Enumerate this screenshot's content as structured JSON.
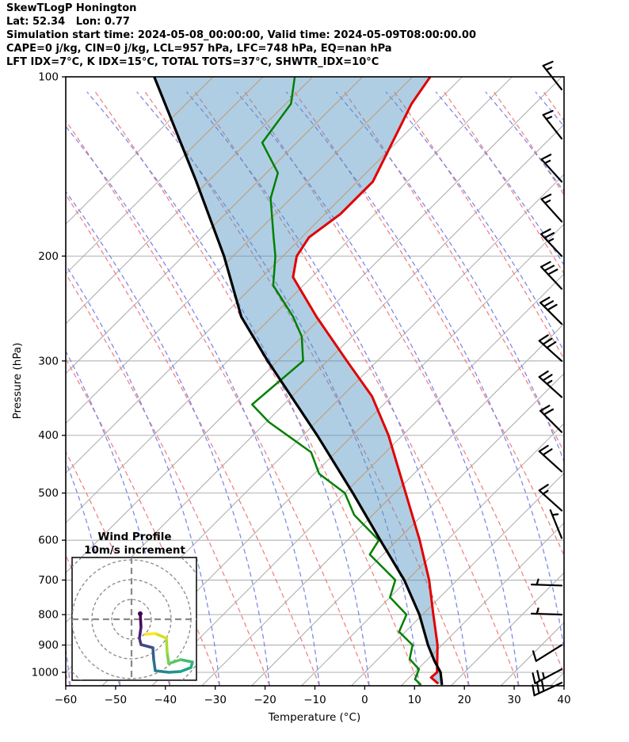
{
  "header": {
    "lines": [
      "SkewTLogP Honington",
      "Lat: 52.34   Lon: 0.77",
      "Simulation start time: 2024-05-08_00:00:00, Valid time: 2024-05-09T08:00:00.00",
      "CAPE=0 j/kg, CIN=0 j/kg, LCL=957 hPa, LFC=748 hPa, EQ=nan hPa",
      "LFT IDX=7°C, K IDX=15°C, TOTAL TOTS=37°C, SHWTR_IDX=10°C"
    ]
  },
  "axes": {
    "xlabel": "Temperature (°C)",
    "ylabel": "Pressure (hPa)",
    "x_ticks": [
      -60,
      -50,
      -40,
      -30,
      -20,
      -10,
      0,
      10,
      20,
      30,
      40
    ],
    "y_ticks": [
      100,
      200,
      300,
      400,
      500,
      600,
      700,
      800,
      900,
      1000
    ],
    "x_range": [
      -60,
      40
    ],
    "p_range": [
      100,
      1050
    ]
  },
  "chart_data": {
    "type": "line",
    "title": "SkewTLogP Honington",
    "xlabel": "Temperature (°C)",
    "ylabel": "Pressure (hPa)",
    "x_range_c": [
      -60,
      40
    ],
    "pressure_range_hpa": [
      100,
      1050
    ],
    "grid": "skew-t background: skewed isotherm/adiabat lines, horizontal isobars",
    "series": [
      {
        "name": "temperature",
        "color": "#e00000",
        "points_p_t": [
          [
            100,
            -60.2
          ],
          [
            111,
            -60.7
          ],
          [
            129,
            -59.9
          ],
          [
            150,
            -59.1
          ],
          [
            170,
            -61.7
          ],
          [
            186,
            -65.2
          ],
          [
            200,
            -65.4
          ],
          [
            217,
            -63.6
          ],
          [
            253,
            -54.1
          ],
          [
            300,
            -42.7
          ],
          [
            344,
            -33.4
          ],
          [
            400,
            -25.4
          ],
          [
            500,
            -15.0
          ],
          [
            600,
            -6.5
          ],
          [
            700,
            0.2
          ],
          [
            800,
            5.2
          ],
          [
            900,
            9.7
          ],
          [
            1000,
            12.9
          ],
          [
            1020,
            12.3
          ],
          [
            1045,
            14.5
          ]
        ]
      },
      {
        "name": "dewpoint",
        "color": "#008000",
        "points_p_t": [
          [
            100,
            -87.4
          ],
          [
            111,
            -84.9
          ],
          [
            129,
            -86.0
          ],
          [
            145,
            -79.2
          ],
          [
            160,
            -77.6
          ],
          [
            186,
            -72.3
          ],
          [
            200,
            -69.7
          ],
          [
            224,
            -66.6
          ],
          [
            253,
            -58.8
          ],
          [
            273,
            -54.7
          ],
          [
            300,
            -51.5
          ],
          [
            355,
            -56.5
          ],
          [
            380,
            -51.0
          ],
          [
            427,
            -38.9
          ],
          [
            464,
            -34.7
          ],
          [
            500,
            -27.2
          ],
          [
            544,
            -22.7
          ],
          [
            600,
            -14.7
          ],
          [
            634,
            -14.8
          ],
          [
            700,
            -6.6
          ],
          [
            748,
            -5.6
          ],
          [
            800,
            -0.2
          ],
          [
            855,
            0.4
          ],
          [
            900,
            4.7
          ],
          [
            950,
            5.8
          ],
          [
            988,
            8.9
          ],
          [
            1027,
            9.3
          ],
          [
            1050,
            11.2
          ]
        ]
      },
      {
        "name": "parcel",
        "color": "#000000",
        "points_p_t": [
          [
            100,
            -115.6
          ],
          [
            150,
            -94.5
          ],
          [
            200,
            -80.0
          ],
          [
            253,
            -69.2
          ],
          [
            300,
            -58.6
          ],
          [
            400,
            -39.7
          ],
          [
            500,
            -25.6
          ],
          [
            600,
            -14.4
          ],
          [
            700,
            -4.8
          ],
          [
            800,
            2.4
          ],
          [
            900,
            7.8
          ],
          [
            957,
            11.0
          ],
          [
            1000,
            13.6
          ],
          [
            1050,
            15.4
          ]
        ]
      }
    ],
    "shaded_area": {
      "between": [
        "parcel",
        "temperature"
      ],
      "color": "#4f93c0",
      "opacity": 0.45
    },
    "indices": {
      "CAPE_jkg": 0,
      "CIN_jkg": 0,
      "LCL_hPa": 957,
      "LFC_hPa": 748,
      "EQ_hPa": "nan",
      "LFT_IDX_C": 7,
      "K_IDX_C": 15,
      "TOTAL_TOTS_C": 37,
      "SHWTR_IDX_C": 10
    },
    "winds": [
      {
        "p": 105,
        "speed_ms": 15,
        "angle_deg": 128
      },
      {
        "p": 127,
        "speed_ms": 15,
        "angle_deg": 128
      },
      {
        "p": 150,
        "speed_ms": 15,
        "angle_deg": 132
      },
      {
        "p": 175,
        "speed_ms": 15,
        "angle_deg": 132
      },
      {
        "p": 200,
        "speed_ms": 25,
        "angle_deg": 133
      },
      {
        "p": 227,
        "speed_ms": 30,
        "angle_deg": 133
      },
      {
        "p": 260,
        "speed_ms": 30,
        "angle_deg": 135
      },
      {
        "p": 300,
        "speed_ms": 30,
        "angle_deg": 138
      },
      {
        "p": 345,
        "speed_ms": 25,
        "angle_deg": 138
      },
      {
        "p": 395,
        "speed_ms": 20,
        "angle_deg": 135
      },
      {
        "p": 460,
        "speed_ms": 20,
        "angle_deg": 138
      },
      {
        "p": 535,
        "speed_ms": 15,
        "angle_deg": 138
      },
      {
        "p": 595,
        "speed_ms": 5,
        "angle_deg": 112
      },
      {
        "p": 715,
        "speed_ms": 5,
        "angle_deg": 178
      },
      {
        "p": 800,
        "speed_ms": 5,
        "angle_deg": 178
      },
      {
        "p": 900,
        "speed_ms": 10,
        "angle_deg": 212
      },
      {
        "p": 988,
        "speed_ms": 25,
        "angle_deg": 208
      },
      {
        "p": 1041,
        "speed_ms": 30,
        "angle_deg": 205
      }
    ],
    "hodograph": {
      "title_line1": "Wind Profile",
      "title_line2": "10m/s increment",
      "ring_increment_ms": 10,
      "trace_uv_ms": [
        [
          4.4,
          2.8
        ],
        [
          4.8,
          -4.0
        ],
        [
          4.0,
          -9.6
        ],
        [
          4.8,
          -12.8
        ],
        [
          10.8,
          -14.4
        ],
        [
          11.2,
          -20.4
        ],
        [
          12.0,
          -26.0
        ],
        [
          18.8,
          -26.8
        ],
        [
          24.8,
          -26.4
        ],
        [
          30.0,
          -24.4
        ],
        [
          30.8,
          -21.6
        ],
        [
          24.8,
          -20.4
        ],
        [
          18.8,
          -22.4
        ],
        [
          18.0,
          -16.8
        ],
        [
          17.6,
          -9.6
        ],
        [
          12.0,
          -7.2
        ],
        [
          7.2,
          -7.6
        ]
      ],
      "trace_colors": [
        "#440154",
        "#481b6d",
        "#46327e",
        "#3f4889",
        "#365c8d",
        "#2e6f8e",
        "#28818e",
        "#23928c",
        "#20a486",
        "#2ab07f",
        "#3dbc74",
        "#58c765",
        "#7ad151",
        "#a5db36",
        "#d2e21b",
        "#fde725"
      ]
    },
    "colors": {
      "isobar_grid": "#b0b0b0",
      "diag_grid": "#b0b0b0",
      "diag_grid_in_shade": "#c6a27d",
      "dry_adiabat_dashed": "#f08080",
      "moist_adiabat_dashed": "#7a86e8",
      "barb": "#000000"
    }
  }
}
